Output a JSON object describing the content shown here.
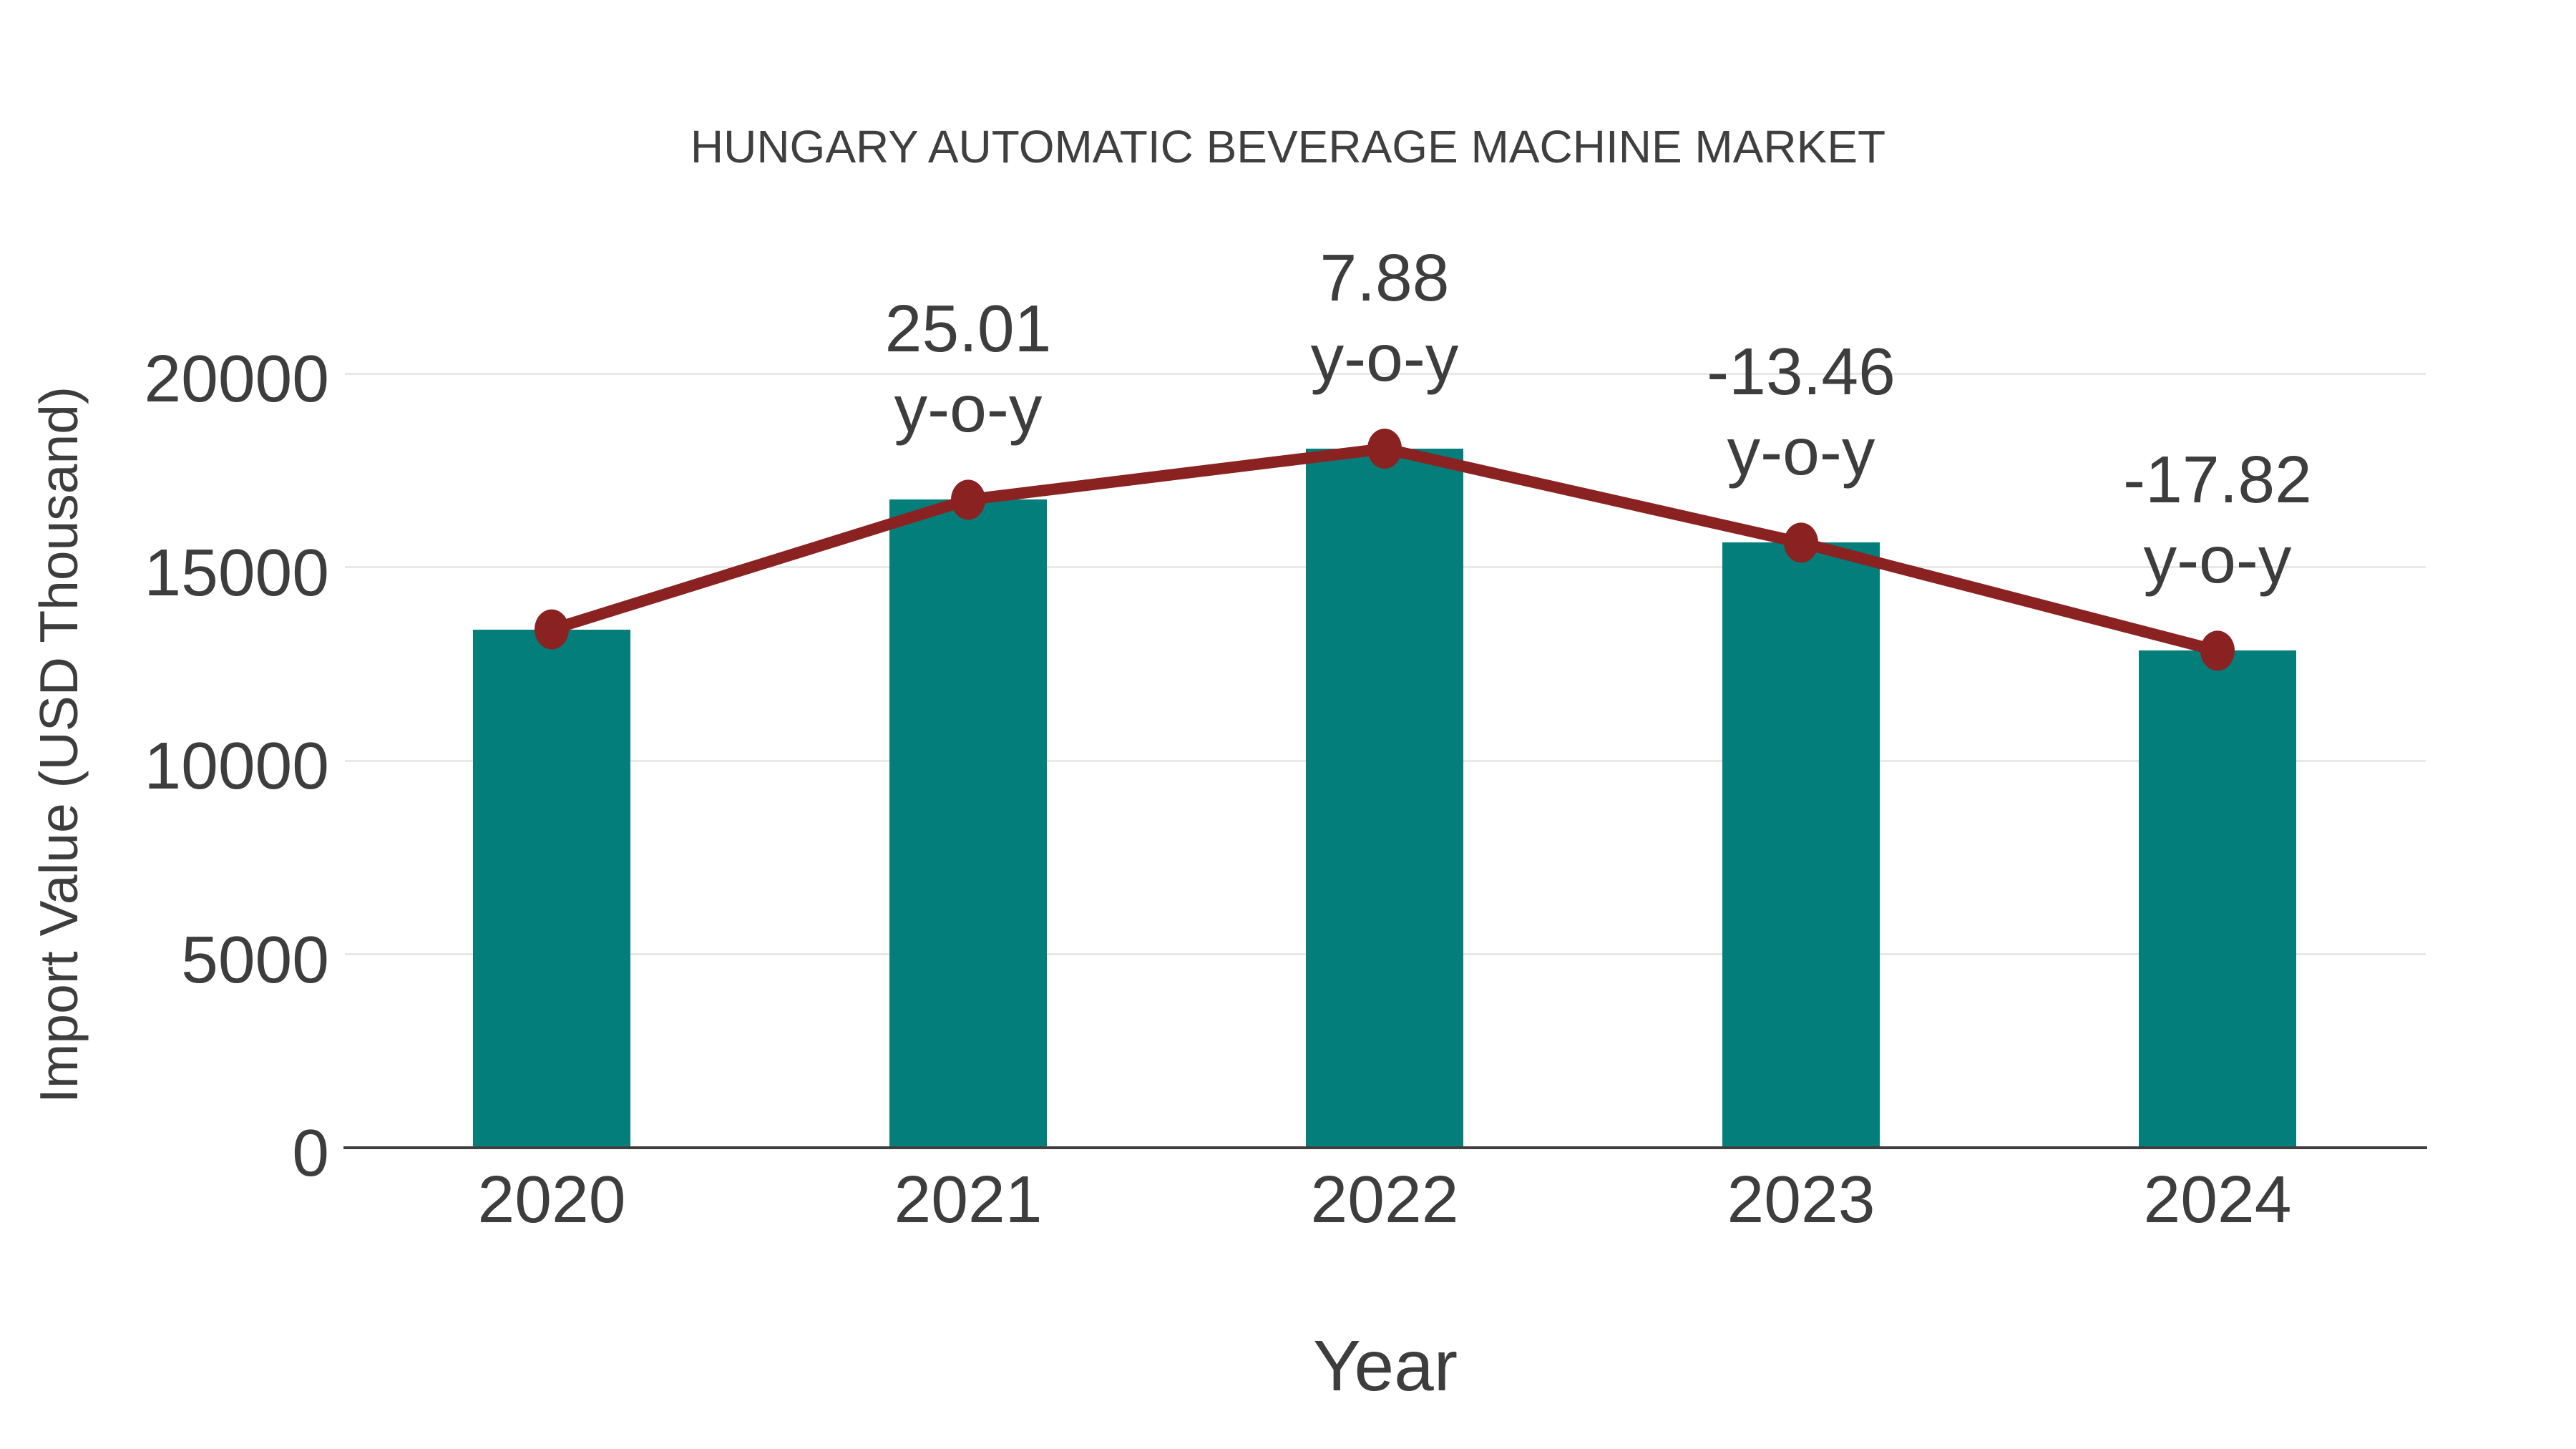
{
  "page": {
    "background": "#ffffff"
  },
  "colors": {
    "bar": "#047e7b",
    "line": "#8b2222",
    "grid": "#e9e9e9",
    "axis": "#3f3f3f",
    "text": "#3d3d3d"
  },
  "chart_data": {
    "type": "bar+line",
    "title": "HUNGARY AUTOMATIC BEVERAGE MACHINE MARKET",
    "xlabel": "Year",
    "ylabel": "Import Value (USD Thousand)",
    "categories": [
      "2020",
      "2021",
      "2022",
      "2023",
      "2024"
    ],
    "series": [
      {
        "name": "Import Value",
        "type": "bar",
        "color": "#047e7b",
        "values": [
          13390,
          16740,
          18060,
          15630,
          12840
        ]
      },
      {
        "name": "y-o-y growth",
        "type": "line",
        "color": "#8b2222",
        "values": [
          13390,
          16740,
          18060,
          15630,
          12840
        ],
        "growth_pct": [
          null,
          25.01,
          7.88,
          -13.46,
          -17.82
        ]
      }
    ],
    "annotations": [
      {
        "category": "2021",
        "line1": "25.01",
        "line2": "y-o-y"
      },
      {
        "category": "2022",
        "line1": "7.88",
        "line2": "y-o-y"
      },
      {
        "category": "2023",
        "line1": "-13.46",
        "line2": "y-o-y"
      },
      {
        "category": "2024",
        "line1": "-17.82",
        "line2": "y-o-y"
      }
    ],
    "yticks": [
      0,
      5000,
      10000,
      15000,
      20000
    ],
    "ylim": [
      0,
      20000
    ],
    "grid": "horizontal",
    "legend": "none"
  }
}
